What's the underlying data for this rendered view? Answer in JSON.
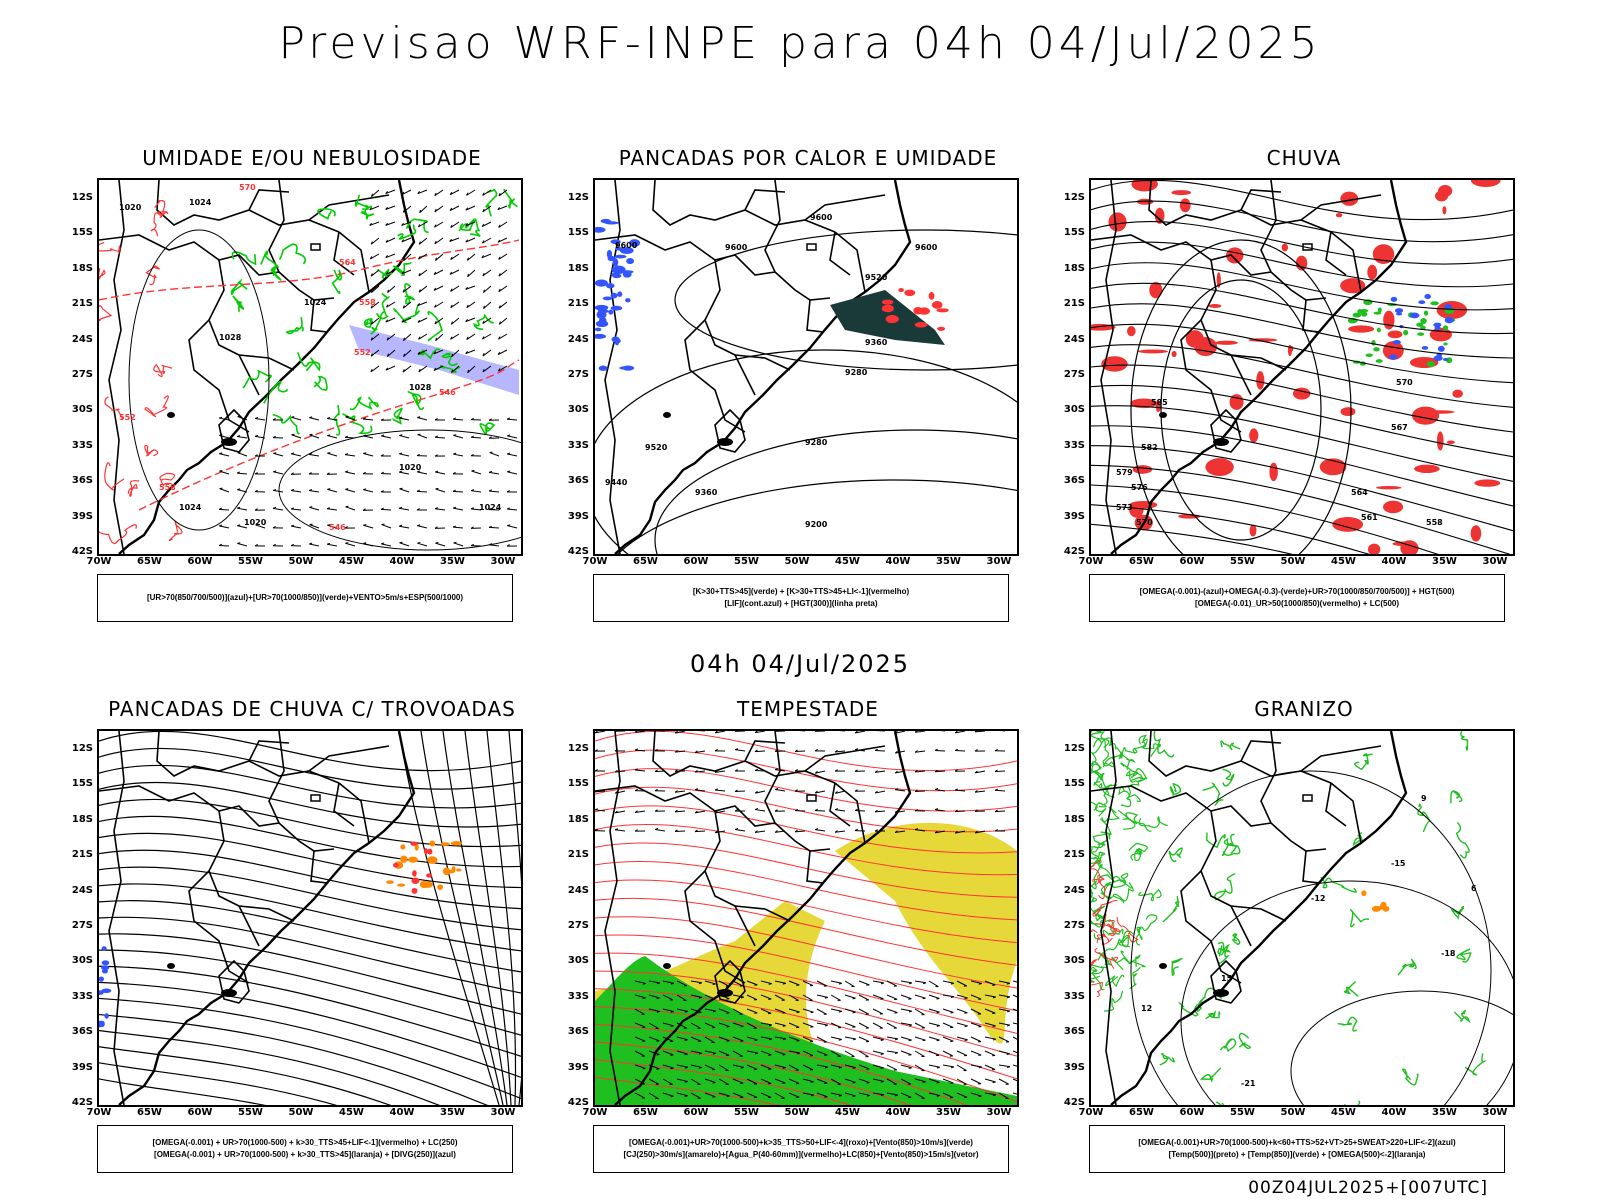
{
  "header": {
    "title": "Previsao WRF-INPE  para 04h 04/Jul/2025",
    "mid_title": "04h 04/Jul/2025",
    "footer": "00Z04JUL2025+[007UTC]"
  },
  "axes": {
    "lat_labels": [
      "12S",
      "15S",
      "18S",
      "21S",
      "24S",
      "27S",
      "30S",
      "33S",
      "36S",
      "39S",
      "42S"
    ],
    "lon_labels": [
      "70W",
      "65W",
      "60W",
      "55W",
      "50W",
      "45W",
      "40W",
      "35W",
      "30W"
    ]
  },
  "panels": [
    {
      "id": "umidade",
      "title": "UMIDADE E/OU NEBULOSIDADE",
      "legend": [
        "[UR>70(850/700/500)](azul)+[UR>70(1000/850)](verde)+VENTO>5m/s+ESP(500/1000)"
      ],
      "contour_labels": [
        "1020",
        "570",
        "1024",
        "564",
        "558",
        "1024",
        "1028",
        "552",
        "546",
        "1020",
        "1024",
        "1020",
        "558",
        "552",
        "546",
        "1024",
        "1028"
      ]
    },
    {
      "id": "pancadas_calor",
      "title": "PANCADAS POR CALOR E UMIDADE",
      "legend": [
        "[K>30+TTS>45](verde) + [K>30+TTS>45+LI<-1](vermelho)",
        "[LIF](cont.azul) + [HGT(300)](linha preta)"
      ],
      "contour_labels": [
        "9600",
        "9600",
        "9600",
        "9600",
        "9520",
        "9360",
        "9280",
        "9520",
        "9440",
        "9360",
        "9280",
        "9200"
      ]
    },
    {
      "id": "chuva",
      "title": "CHUVA",
      "legend": [
        "[OMEGA(-0.001)-(azul)+OMEGA(-0.3)-(verde)+UR>70(1000/850/700/500)] + HGT(500)",
        "[OMEGA(-0.01)_UR>50(1000/850)(vermelho) + LC(500)"
      ],
      "contour_labels": [
        "585",
        "582",
        "579",
        "576",
        "573",
        "570",
        "567",
        "564",
        "561",
        "558",
        "570"
      ]
    },
    {
      "id": "trovoadas",
      "title": "PANCADAS DE CHUVA C/ TROVOADAS",
      "legend": [
        "[OMEGA(-0.001) + UR>70(1000-500) + k>30_TTS>45+LIF<-1](vermelho) + LC(250)",
        "[OMEGA(-0.001) + UR>70(1000-500) + k>30_TTS>45](laranja) + [DIVG(250)](azul)"
      ],
      "contour_labels": []
    },
    {
      "id": "tempestade",
      "title": "TEMPESTADE",
      "legend": [
        "[OMEGA(-0.001)+UR>70(1000-500)+k>35_TTS>50+LIF<-4](roxo)+[Vento(850)>10m/s](verde)",
        "[CJ(250)>30m/s](amarelo)+[Agua_P(40-60mm)](vermelho)+LC(850)+[Vento(850)>15m/s](vetor)"
      ],
      "contour_labels": []
    },
    {
      "id": "granizo",
      "title": "GRANIZO",
      "legend": [
        "[OMEGA(-0.001)+UR>70(1000-500)+k<60+TTS>52+VT>25+SWEAT>220+LIF<-2](azul)",
        "[Temp(500)](preto) + [Temp(850)](verde) + [OMEGA(500)<-2](laranja)"
      ],
      "contour_labels": [
        "-12",
        "-15",
        "-18",
        "-21",
        "12",
        "15",
        "9",
        "6"
      ]
    }
  ],
  "colors": {
    "humidity_high": "#9999ff",
    "humidity_low": "#00cc00",
    "thickness": "#ff3333",
    "rain_red": "#ee3333",
    "lif_blue": "#3355ff",
    "storm_dark": "#1a3a3a",
    "jet_yellow": "#e6d838",
    "wind_green": "#1fbf1f",
    "orange": "#ff8800"
  }
}
